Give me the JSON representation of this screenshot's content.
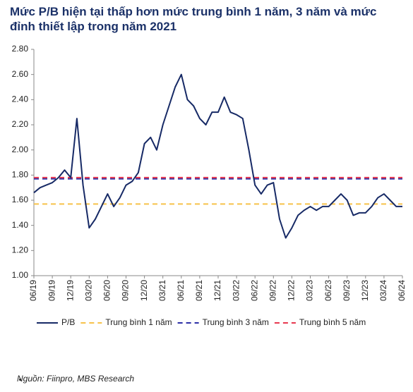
{
  "chart_data": {
    "type": "line",
    "title": "Mức P/B hiện tại thấp hơn mức trung bình 1 năm, 3 năm và mức đỉnh thiết lập trong năm 2021",
    "source": "Nguồn: Fiinpro, MBS Research",
    "categories": [
      "06/19",
      null,
      null,
      "09/19",
      null,
      null,
      "12/19",
      null,
      null,
      "03/20",
      null,
      null,
      "06/20",
      null,
      null,
      "09/20",
      null,
      null,
      "12/20",
      null,
      null,
      "03/21",
      null,
      null,
      "06/21",
      null,
      null,
      "09/21",
      null,
      null,
      "12/21",
      null,
      null,
      "03/22",
      null,
      null,
      "06/22",
      null,
      null,
      "09/22",
      null,
      null,
      "12/22",
      null,
      null,
      "03/23",
      null,
      null,
      "06/23",
      null,
      null,
      "09/23",
      null,
      null,
      "12/23",
      null,
      null,
      "03/24",
      null,
      null,
      "06/24"
    ],
    "series": [
      {
        "name": "P/B",
        "color": "#172a66",
        "values": [
          1.66,
          1.7,
          1.72,
          1.74,
          1.78,
          1.84,
          1.78,
          2.25,
          1.72,
          1.38,
          1.45,
          1.55,
          1.65,
          1.55,
          1.62,
          1.72,
          1.75,
          1.82,
          2.05,
          2.1,
          2.0,
          2.2,
          2.35,
          2.5,
          2.6,
          2.4,
          2.35,
          2.25,
          2.2,
          2.3,
          2.3,
          2.42,
          2.3,
          2.28,
          2.25,
          2.0,
          1.72,
          1.65,
          1.72,
          1.74,
          1.45,
          1.3,
          1.38,
          1.48,
          1.52,
          1.55,
          1.52,
          1.55,
          1.55,
          1.6,
          1.65,
          1.6,
          1.48,
          1.5,
          1.5,
          1.55,
          1.62,
          1.65,
          1.6,
          1.55,
          1.55
        ]
      }
    ],
    "reference_lines": [
      {
        "name": "Trung bình 1 năm",
        "color": "#f7c24a",
        "value": 1.57
      },
      {
        "name": "Trung bình 3 năm",
        "color": "#2b2fa6",
        "value": 1.77
      },
      {
        "name": "Trung bình 5 năm",
        "color": "#e8384f",
        "value": 1.78
      }
    ],
    "ylim": [
      1.0,
      2.8
    ],
    "yticks": [
      {
        "value": 1.0,
        "label": "1.00"
      },
      {
        "value": 1.2,
        "label": "1.20"
      },
      {
        "value": 1.4,
        "label": "1.40"
      },
      {
        "value": 1.6,
        "label": "1.60"
      },
      {
        "value": 1.8,
        "label": "1.80"
      },
      {
        "value": 2.0,
        "label": "2.00"
      },
      {
        "value": 2.2,
        "label": "2.20"
      },
      {
        "value": 2.4,
        "label": "2.40"
      },
      {
        "value": 2.6,
        "label": "2.60"
      },
      {
        "value": 2.8,
        "label": "2.80"
      }
    ],
    "grid": false
  }
}
